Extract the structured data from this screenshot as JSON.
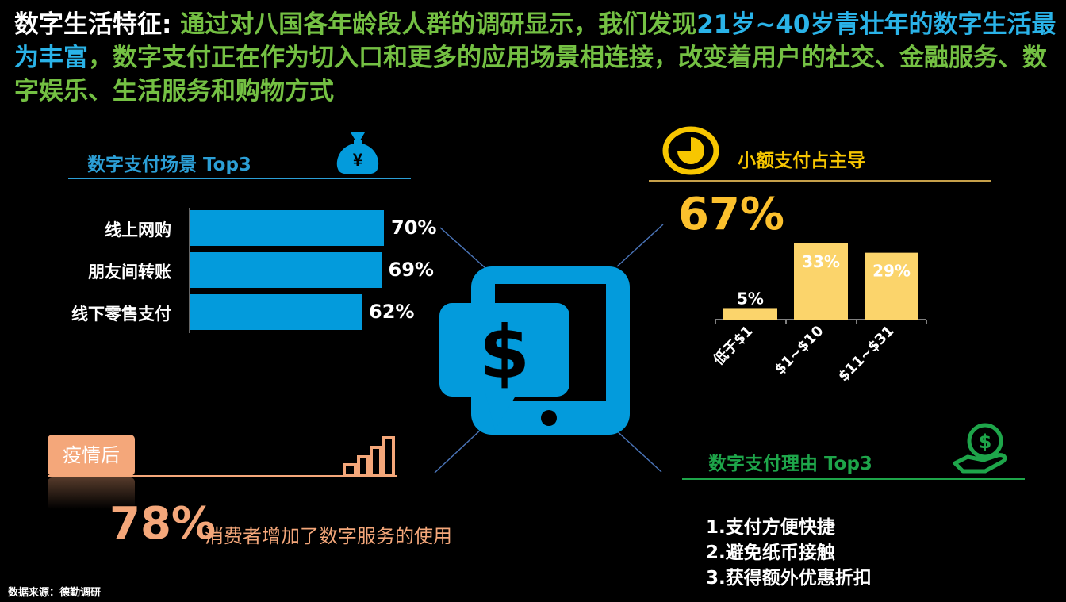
{
  "headline": {
    "part1": "数字生活特征: ",
    "part2": "通过对八国各年龄段人群的调研显示，我们发现",
    "part3": "21岁~40岁青壮年的数字生活最为丰富",
    "part4": "，数字支付正在作为切入口和更多的应用场景相连接，改变着用户的社交、金融服务、数字娱乐、生活服务和购物方式"
  },
  "scenes": {
    "title": "数字支付场景 Top3",
    "icon": "money-bag-icon"
  },
  "small_payment": {
    "title": "小额支付占主导",
    "big_value": "67%",
    "icon": "pie-icon"
  },
  "reasons": {
    "title": "数字支付理由 Top3",
    "items": [
      "1.支付方便快捷",
      "2.避免纸币接触",
      "3.获得额外优惠折扣"
    ],
    "icon": "hand-coin-icon"
  },
  "post_pandemic": {
    "tag": "疫情后",
    "big_value": "78%",
    "text": "消费者增加了数字服务的使用",
    "icon": "bar-chart-icon"
  },
  "center_icon": "tablet-dollar-icon",
  "source": "数据来源：德勤调研",
  "colors": {
    "blue": "#039bdc",
    "yellow": "#fbd46b",
    "green": "#1ea54a",
    "orange": "#f4a77a"
  },
  "chart_data": [
    {
      "type": "bar",
      "orientation": "horizontal",
      "categories": [
        "线上网购",
        "朋友间转账",
        "线下零售支付"
      ],
      "values": [
        70,
        69,
        62
      ],
      "labels": [
        "70%",
        "69%",
        "62%"
      ],
      "title": "数字支付场景 Top3"
    },
    {
      "type": "bar",
      "categories": [
        "低于$1",
        "$1~$10",
        "$11~$31"
      ],
      "values": [
        5,
        33,
        29
      ],
      "labels": [
        "5%",
        "33%",
        "29%"
      ],
      "title": "小额支付占主导"
    }
  ]
}
